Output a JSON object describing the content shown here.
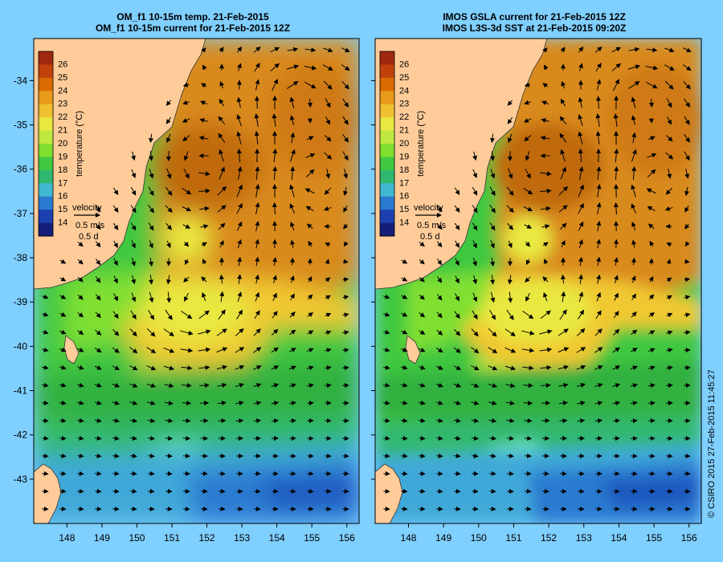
{
  "panels": [
    {
      "id": "left",
      "title_line1": "OM_f1 10-15m temp. 21-Feb-2015",
      "title_line2": "OM_f1 10-15m current for 21-Feb-2015 12Z"
    },
    {
      "id": "right",
      "title_line1": "IMOS GSLA current for 21-Feb-2015 12Z",
      "title_line2": "IMOS L3S-3d SST at 21-Feb-2015 09:20Z"
    }
  ],
  "colorbar": {
    "label": "temperature (°C)",
    "ticks": [
      "26",
      "25",
      "24",
      "23",
      "22",
      "21",
      "20",
      "19",
      "18",
      "17",
      "16",
      "15",
      "14"
    ],
    "colors": [
      "#a0280f",
      "#c0420a",
      "#d96a00",
      "#e89a1a",
      "#f0c030",
      "#e8e840",
      "#c0e840",
      "#80e030",
      "#40c840",
      "#30b870",
      "#40b8d0",
      "#2a7ad0",
      "#1c40b0",
      "#141e78"
    ]
  },
  "velocity_legend": {
    "label": "velocity",
    "speed": "0.5 m/s",
    "duration": "0.5 d"
  },
  "axes": {
    "lon_ticks": [
      "148",
      "149",
      "150",
      "151",
      "152",
      "153",
      "154",
      "155",
      "156"
    ],
    "lat_ticks": [
      "-34",
      "-35",
      "-36",
      "-37",
      "-38",
      "-39",
      "-40",
      "-41",
      "-42",
      "-43"
    ],
    "lon_range": [
      147.05,
      156.35
    ],
    "lat_range": [
      -44,
      -33.05
    ]
  },
  "copyright": "© CSIRO 2015   27-Feb-2015 11:45:27"
}
